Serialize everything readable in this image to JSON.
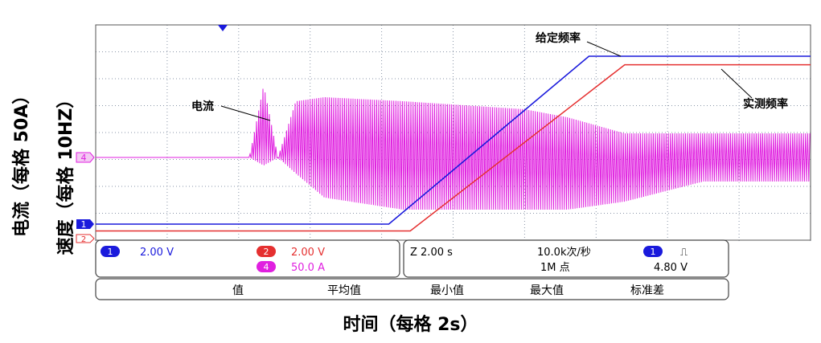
{
  "chart_data": {
    "type": "line",
    "y_label_current": "电流（每格 50A）",
    "y_label_speed": "速度（每格 10HZ）",
    "x_label": "时间（每格 2s）",
    "x_div": 2,
    "x_divisions": 10,
    "series": [
      {
        "name": "给定频率",
        "color": "#1a1adc",
        "x": [
          0,
          8.2,
          13.8,
          20
        ],
        "y": [
          0,
          0,
          29.5,
          29.5
        ]
      },
      {
        "name": "实测频率",
        "color": "#e53030",
        "x": [
          0,
          8.8,
          14.8,
          20
        ],
        "y": [
          -1.2,
          -1.2,
          28,
          28
        ]
      },
      {
        "name": "电流",
        "color": "#e020e0",
        "envelope_x": [
          0,
          4.3,
          4.7,
          5.1,
          5.6,
          6.4,
          8.6,
          12.0,
          13.2,
          14.8,
          17.0,
          20
        ],
        "envelope_upper": [
          0,
          0,
          18,
          0,
          14,
          15,
          14,
          12,
          10,
          6,
          6,
          6
        ],
        "envelope_lower": [
          0,
          0,
          -2,
          0,
          -4,
          -10,
          -13,
          -13,
          -13,
          -11,
          -6,
          -6
        ]
      }
    ],
    "annotations": [
      {
        "text": "电流",
        "target": "current"
      },
      {
        "text": "给定频率",
        "target": "reference"
      },
      {
        "text": "实测频率",
        "target": "measured"
      }
    ]
  },
  "scope": {
    "ch1_marker": "1",
    "ch2_marker": "2",
    "ch4_marker": "4",
    "ch1_scale": "2.00 V",
    "ch2_scale": "2.00 V",
    "ch4_scale": "50.0 A",
    "timebase": "Z 2.00 s",
    "sample_rate": "10.0k次/秒",
    "record_length": "1M 点",
    "trigger_channel": "1",
    "trigger_slope": "⎍",
    "trigger_level": "4.80 V",
    "measure_headers": [
      "值",
      "平均值",
      "最小值",
      "最大值",
      "标准差"
    ],
    "colors": {
      "ch1": "#1a1adc",
      "ch2": "#e53030",
      "ch4": "#e020e0",
      "grid": "#8a96a8"
    }
  }
}
